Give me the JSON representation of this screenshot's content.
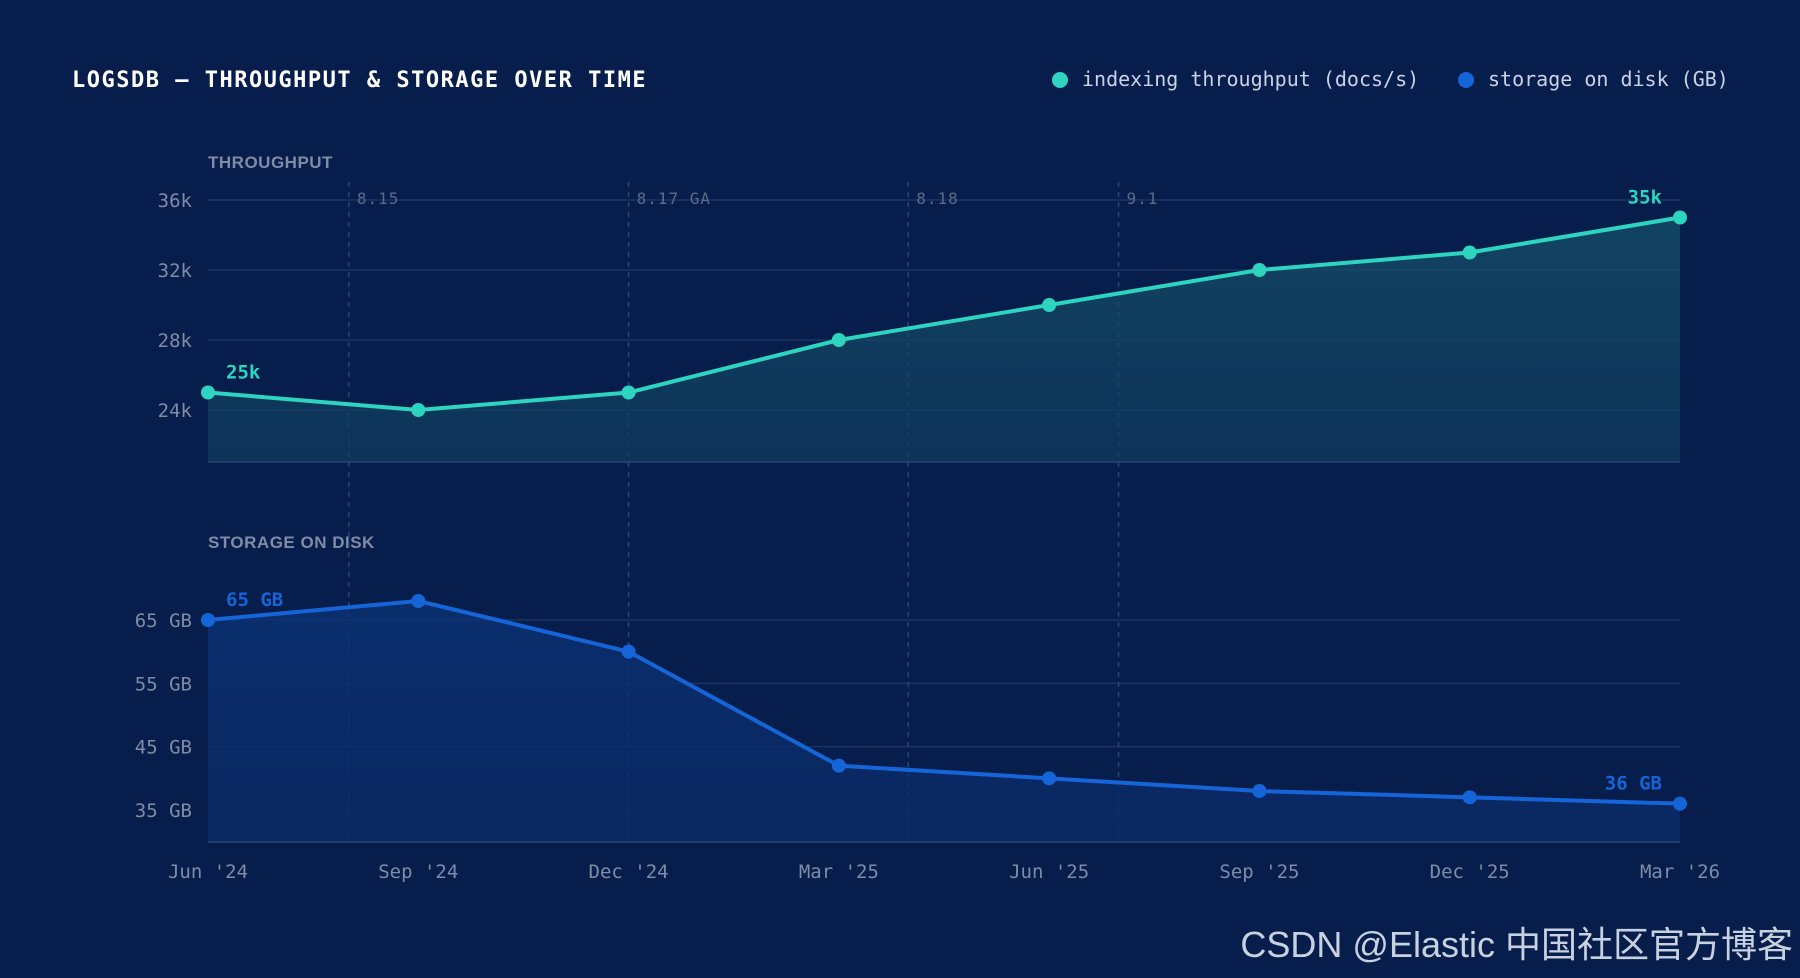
{
  "title": "LOGSDB — THROUGHPUT & STORAGE OVER TIME",
  "legend": [
    {
      "label": "indexing throughput (docs/s)",
      "color": "#2dd4bf"
    },
    {
      "label": "storage on disk (GB)",
      "color": "#1565d8"
    }
  ],
  "watermark": "CSDN @Elastic 中国社区官方博客",
  "chart_data": {
    "type": "line",
    "x": [
      "Jun '24",
      "Sep '24",
      "Dec '24",
      "Mar '25",
      "Jun '25",
      "Sep '25",
      "Dec '25",
      "Mar '26"
    ],
    "releases": [
      {
        "label": "8.15",
        "at": 0.67
      },
      {
        "label": "8.17 GA",
        "at": 2.0
      },
      {
        "label": "8.18",
        "at": 3.33
      },
      {
        "label": "9.1",
        "at": 4.33
      }
    ],
    "panels": [
      {
        "key": "throughput",
        "section_label": "THROUGHPUT",
        "series_name": "indexing throughput (docs/s)",
        "color": "#2dd4bf",
        "values": [
          25,
          24,
          25,
          28,
          30,
          32,
          33,
          35
        ],
        "unit": "k docs/s",
        "yticks": [
          {
            "value": 36,
            "label": "36k"
          },
          {
            "value": 32,
            "label": "32k"
          },
          {
            "value": 28,
            "label": "28k"
          },
          {
            "value": 24,
            "label": "24k"
          }
        ],
        "ylim": [
          21,
          36
        ],
        "first_label": "25k",
        "last_label": "35k"
      },
      {
        "key": "storage",
        "section_label": "STORAGE ON DISK",
        "series_name": "storage on disk (GB)",
        "color": "#1565d8",
        "values": [
          65,
          68,
          60,
          42,
          40,
          38,
          37,
          36
        ],
        "unit": "GB",
        "yticks": [
          {
            "value": 65,
            "label": "65 GB"
          },
          {
            "value": 55,
            "label": "55 GB"
          },
          {
            "value": 45,
            "label": "45 GB"
          },
          {
            "value": 35,
            "label": "35 GB"
          }
        ],
        "ylim": [
          30,
          71
        ],
        "first_label": "65 GB",
        "last_label": "36 GB"
      }
    ]
  }
}
